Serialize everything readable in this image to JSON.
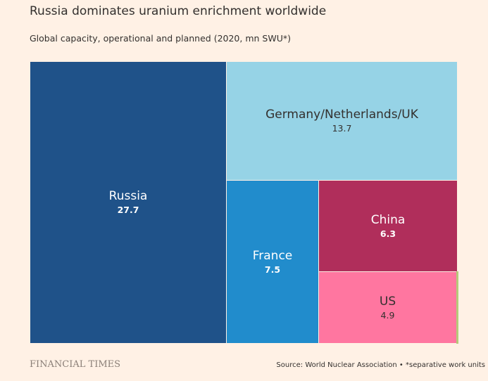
{
  "title": "Russia dominates uranium enrichment worldwide",
  "subtitle": "Global capacity, operational and planned (2020, mn SWU*)",
  "chart_data": {
    "type": "treemap",
    "title": "Russia dominates uranium enrichment worldwide",
    "subtitle": "Global capacity, operational and planned (2020, mn SWU*)",
    "units": "mn SWU",
    "categories": [
      "Russia",
      "Germany/Netherlands/UK",
      "France",
      "China",
      "US"
    ],
    "values": [
      27.7,
      13.7,
      7.5,
      6.3,
      4.9
    ],
    "labels": [
      "27.7",
      "13.7",
      "7.5",
      "6.3",
      "4.9"
    ],
    "colors": [
      "#1f5289",
      "#96d3e6",
      "#218ccc",
      "#b02e5b",
      "#ff76a0"
    ]
  },
  "footer": {
    "logo": "FINANCIAL TIMES",
    "source": "Source: World Nuclear Association • *separative work units"
  }
}
